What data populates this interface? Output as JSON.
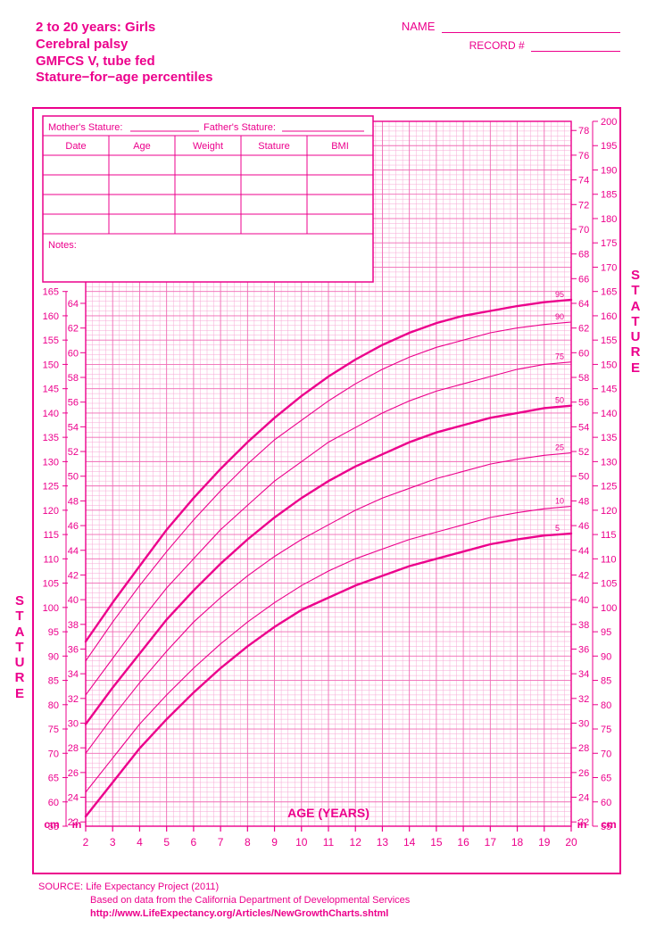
{
  "colors": {
    "primary": "#ec008c",
    "grid_light": "#f7a7d4",
    "grid_med": "#f06db6",
    "background": "#ffffff"
  },
  "header": {
    "title_line1": "2 to 20 years: Girls",
    "title_line2": "Cerebral palsy",
    "title_line3": "GMFCS V, tube fed",
    "title_line4": "Stature−for−age percentiles",
    "name_label": "NAME",
    "record_label": "RECORD #"
  },
  "data_table": {
    "parent_label_mother": "Mother's Stature:",
    "parent_label_father": "Father's Stature:",
    "columns": [
      "Date",
      "Age",
      "Weight",
      "Stature",
      "BMI"
    ],
    "blank_rows": 4,
    "notes_label": "Notes:"
  },
  "axis": {
    "x_label": "AGE (YEARS)",
    "x_ticks": [
      2,
      3,
      4,
      5,
      6,
      7,
      8,
      9,
      10,
      11,
      12,
      13,
      14,
      15,
      16,
      17,
      18,
      19,
      20
    ],
    "y_label_left": "STATURE",
    "y_label_right": "STATURE",
    "cm_label": "cm",
    "in_label": "in",
    "cm_min": 55,
    "cm_max": 200,
    "cm_step": 5,
    "in_min": 22,
    "in_max": 78,
    "in_step": 2,
    "left_cm_max_visible": 165,
    "left_in_max_visible": 66,
    "right_cm_min_visible": 55,
    "right_in_min_visible": 22
  },
  "chart": {
    "type": "line",
    "plot_x_range": [
      2,
      20
    ],
    "plot_cm_range": [
      55,
      200
    ],
    "curves": [
      {
        "label": "5",
        "weight": 2.4,
        "pts": [
          [
            2,
            57
          ],
          [
            3,
            64
          ],
          [
            4,
            71
          ],
          [
            5,
            77
          ],
          [
            6,
            82.5
          ],
          [
            7,
            87.5
          ],
          [
            8,
            92
          ],
          [
            9,
            96
          ],
          [
            10,
            99.5
          ],
          [
            11,
            102
          ],
          [
            12,
            104.5
          ],
          [
            13,
            106.5
          ],
          [
            14,
            108.5
          ],
          [
            15,
            110
          ],
          [
            16,
            111.5
          ],
          [
            17,
            113
          ],
          [
            18,
            114
          ],
          [
            19,
            114.8
          ],
          [
            20,
            115.2
          ]
        ]
      },
      {
        "label": "10",
        "weight": 1.1,
        "pts": [
          [
            2,
            62
          ],
          [
            3,
            69
          ],
          [
            4,
            76
          ],
          [
            5,
            82
          ],
          [
            6,
            87.5
          ],
          [
            7,
            92.5
          ],
          [
            8,
            97
          ],
          [
            9,
            101
          ],
          [
            10,
            104.5
          ],
          [
            11,
            107.5
          ],
          [
            12,
            110
          ],
          [
            13,
            112
          ],
          [
            14,
            114
          ],
          [
            15,
            115.5
          ],
          [
            16,
            117
          ],
          [
            17,
            118.5
          ],
          [
            18,
            119.5
          ],
          [
            19,
            120.3
          ],
          [
            20,
            120.8
          ]
        ]
      },
      {
        "label": "25",
        "weight": 1.1,
        "pts": [
          [
            2,
            70
          ],
          [
            3,
            77.5
          ],
          [
            4,
            84.5
          ],
          [
            5,
            91
          ],
          [
            6,
            97
          ],
          [
            7,
            102
          ],
          [
            8,
            106.5
          ],
          [
            9,
            110.5
          ],
          [
            10,
            114
          ],
          [
            11,
            117
          ],
          [
            12,
            120
          ],
          [
            13,
            122.5
          ],
          [
            14,
            124.5
          ],
          [
            15,
            126.5
          ],
          [
            16,
            128
          ],
          [
            17,
            129.5
          ],
          [
            18,
            130.5
          ],
          [
            19,
            131.3
          ],
          [
            20,
            131.8
          ]
        ]
      },
      {
        "label": "50",
        "weight": 2.4,
        "pts": [
          [
            2,
            76
          ],
          [
            3,
            83.5
          ],
          [
            4,
            90.5
          ],
          [
            5,
            97.5
          ],
          [
            6,
            103.5
          ],
          [
            7,
            109
          ],
          [
            8,
            114
          ],
          [
            9,
            118.5
          ],
          [
            10,
            122.5
          ],
          [
            11,
            126
          ],
          [
            12,
            129
          ],
          [
            13,
            131.5
          ],
          [
            14,
            134
          ],
          [
            15,
            136
          ],
          [
            16,
            137.5
          ],
          [
            17,
            139
          ],
          [
            18,
            140
          ],
          [
            19,
            141
          ],
          [
            20,
            141.5
          ]
        ]
      },
      {
        "label": "75",
        "weight": 1.1,
        "pts": [
          [
            2,
            82
          ],
          [
            3,
            89.5
          ],
          [
            4,
            97
          ],
          [
            5,
            104
          ],
          [
            6,
            110
          ],
          [
            7,
            116
          ],
          [
            8,
            121
          ],
          [
            9,
            126
          ],
          [
            10,
            130
          ],
          [
            11,
            134
          ],
          [
            12,
            137
          ],
          [
            13,
            140
          ],
          [
            14,
            142.5
          ],
          [
            15,
            144.5
          ],
          [
            16,
            146
          ],
          [
            17,
            147.5
          ],
          [
            18,
            149
          ],
          [
            19,
            150
          ],
          [
            20,
            150.5
          ]
        ]
      },
      {
        "label": "90",
        "weight": 1.1,
        "pts": [
          [
            2,
            89
          ],
          [
            3,
            97
          ],
          [
            4,
            104.5
          ],
          [
            5,
            111.5
          ],
          [
            6,
            118
          ],
          [
            7,
            124
          ],
          [
            8,
            129.5
          ],
          [
            9,
            134.5
          ],
          [
            10,
            138.5
          ],
          [
            11,
            142.5
          ],
          [
            12,
            146
          ],
          [
            13,
            149
          ],
          [
            14,
            151.5
          ],
          [
            15,
            153.5
          ],
          [
            16,
            155
          ],
          [
            17,
            156.5
          ],
          [
            18,
            157.5
          ],
          [
            19,
            158.2
          ],
          [
            20,
            158.7
          ]
        ]
      },
      {
        "label": "95",
        "weight": 2.4,
        "pts": [
          [
            2,
            93
          ],
          [
            3,
            101
          ],
          [
            4,
            108.5
          ],
          [
            5,
            116
          ],
          [
            6,
            122.5
          ],
          [
            7,
            128.5
          ],
          [
            8,
            134
          ],
          [
            9,
            139
          ],
          [
            10,
            143.5
          ],
          [
            11,
            147.5
          ],
          [
            12,
            151
          ],
          [
            13,
            154
          ],
          [
            14,
            156.5
          ],
          [
            15,
            158.5
          ],
          [
            16,
            160
          ],
          [
            17,
            161
          ],
          [
            18,
            162
          ],
          [
            19,
            162.8
          ],
          [
            20,
            163.3
          ]
        ]
      }
    ]
  },
  "source": {
    "label": "SOURCE:",
    "line1": "Life Expectancy Project (2011)",
    "line2": "Based on data from the California Department of Developmental Services",
    "link": "http://www.LifeExpectancy.org/Articles/NewGrowthCharts.shtml"
  }
}
